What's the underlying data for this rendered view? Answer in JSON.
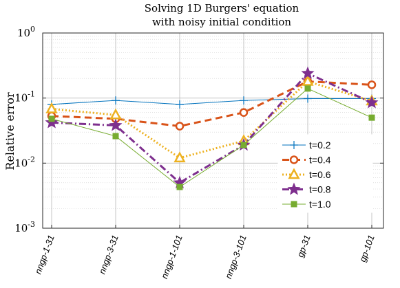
{
  "chart_data": {
    "type": "line",
    "title_line1": "Solving 1D Burgers' equation",
    "title_line2": "with noisy initial condition",
    "ylabel": "Relative error",
    "xlabel": "",
    "yscale": "log",
    "ylim": [
      0.001,
      1
    ],
    "yticks": [
      {
        "base": "10",
        "exp": "0",
        "value": 1
      },
      {
        "base": "10",
        "exp": "-1",
        "value": 0.1
      },
      {
        "base": "10",
        "exp": "-2",
        "value": 0.01
      },
      {
        "base": "10",
        "exp": "-3",
        "value": 0.001
      }
    ],
    "categories": [
      "nngp-1-31",
      "nngp-3-31",
      "nngp-1-101",
      "nngp-3-101",
      "gp-31",
      "gp-101"
    ],
    "grid": true,
    "legend_position": "lower-right",
    "series": [
      {
        "name": "t=0.2",
        "color": "#0072BD",
        "dash": "solid",
        "marker": "plus",
        "values": [
          0.08,
          0.092,
          0.08,
          0.092,
          0.098,
          0.098
        ]
      },
      {
        "name": "t=0.4",
        "color": "#D95319",
        "dash": "dashed",
        "marker": "circle",
        "values": [
          0.053,
          0.048,
          0.037,
          0.06,
          0.18,
          0.16
        ]
      },
      {
        "name": "t=0.6",
        "color": "#EDB120",
        "dash": "dotted",
        "marker": "triangle",
        "values": [
          0.068,
          0.055,
          0.012,
          0.022,
          0.18,
          0.09
        ]
      },
      {
        "name": "t=0.8",
        "color": "#7E2F8E",
        "dash": "dashdot",
        "marker": "star",
        "values": [
          0.042,
          0.038,
          0.005,
          0.019,
          0.24,
          0.085
        ]
      },
      {
        "name": "t=1.0",
        "color": "#77AC30",
        "dash": "solid",
        "marker": "square",
        "values": [
          0.048,
          0.026,
          0.0043,
          0.019,
          0.14,
          0.05
        ]
      }
    ]
  }
}
